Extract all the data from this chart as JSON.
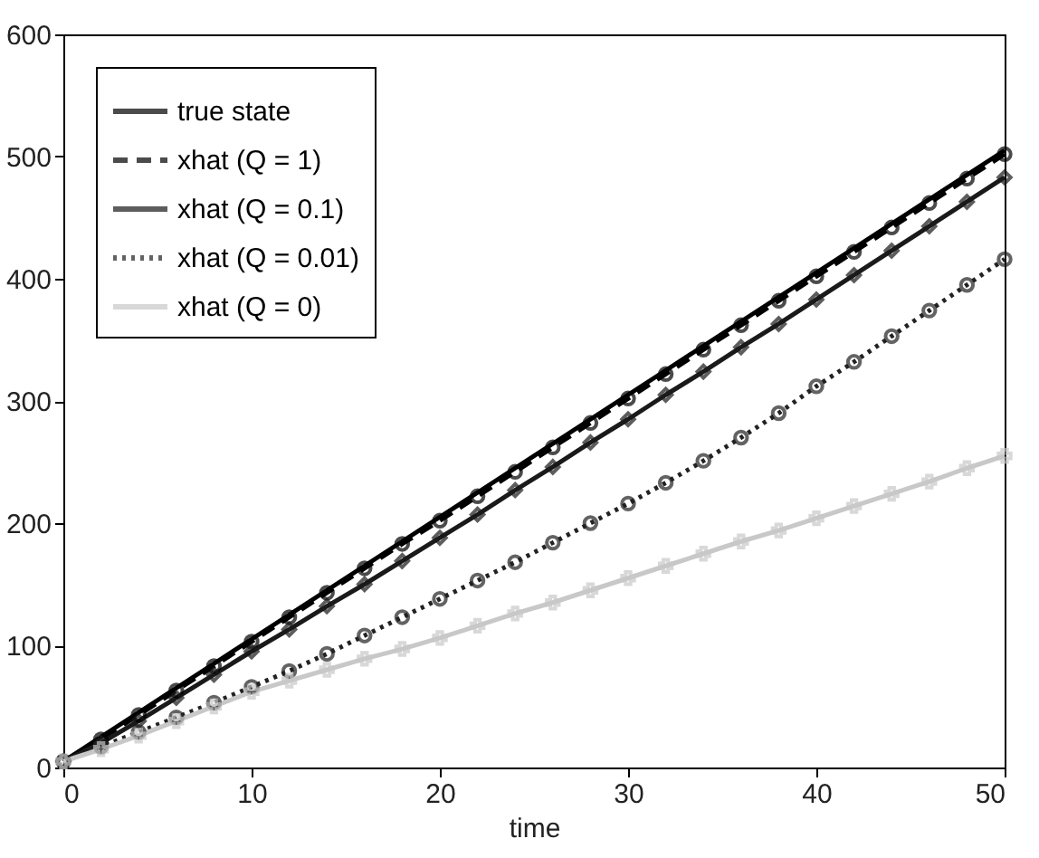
{
  "chart_data": {
    "type": "line",
    "xlabel": "time",
    "x": [
      0,
      2,
      4,
      6,
      8,
      10,
      12,
      14,
      16,
      18,
      20,
      22,
      24,
      26,
      28,
      30,
      32,
      34,
      36,
      38,
      40,
      42,
      44,
      46,
      48,
      50
    ],
    "xlim": [
      0,
      50
    ],
    "xticks": [
      0,
      10,
      20,
      30,
      40,
      50
    ],
    "ylim": [
      0,
      600
    ],
    "yticks": [
      0,
      100,
      200,
      300,
      400,
      500,
      600
    ],
    "grid": false,
    "legend": "top left",
    "series": [
      {
        "name": "true state",
        "color": "#000000",
        "line_style": "solid",
        "marker": "none",
        "values": [
          5,
          25,
          45,
          65,
          85,
          105,
          125,
          145,
          165,
          185,
          205,
          225,
          245,
          265,
          285,
          305,
          325,
          345,
          365,
          385,
          405,
          425,
          445,
          465,
          485,
          505
        ]
      },
      {
        "name": "xhat (Q = 1)",
        "color": "#000000",
        "line_style": "dashed",
        "marker": "circle",
        "values": [
          5,
          23,
          43,
          63,
          83,
          103,
          123,
          143,
          163,
          183,
          202,
          222,
          242,
          262,
          282,
          302,
          322,
          342,
          362,
          382,
          402,
          422,
          442,
          462,
          482,
          502
        ]
      },
      {
        "name": "xhat (Q = 0.1)",
        "color": "#1a1a1a",
        "line_style": "solid",
        "marker": "diamond",
        "values": [
          5,
          20,
          38,
          57,
          76,
          95,
          113,
          132,
          150,
          169,
          188,
          207,
          227,
          246,
          266,
          285,
          305,
          324,
          344,
          363,
          383,
          403,
          423,
          443,
          463,
          483
        ]
      },
      {
        "name": "xhat (Q = 0.01)",
        "color": "#222222",
        "line_style": "dotted",
        "marker": "circle",
        "values": [
          5,
          17,
          29,
          41,
          53,
          66,
          79,
          93,
          108,
          123,
          138,
          153,
          168,
          184,
          200,
          216,
          233,
          251,
          270,
          290,
          312,
          332,
          353,
          374,
          395,
          416
        ]
      },
      {
        "name": "xhat (Q = 0)",
        "color": "#c8c8c8",
        "line_style": "solid",
        "marker": "cross",
        "values": [
          5,
          15,
          26,
          38,
          50,
          62,
          71,
          80,
          89,
          97,
          106,
          116,
          126,
          135,
          145,
          155,
          165,
          175,
          185,
          194,
          204,
          214,
          224,
          234,
          245,
          255
        ]
      }
    ]
  }
}
